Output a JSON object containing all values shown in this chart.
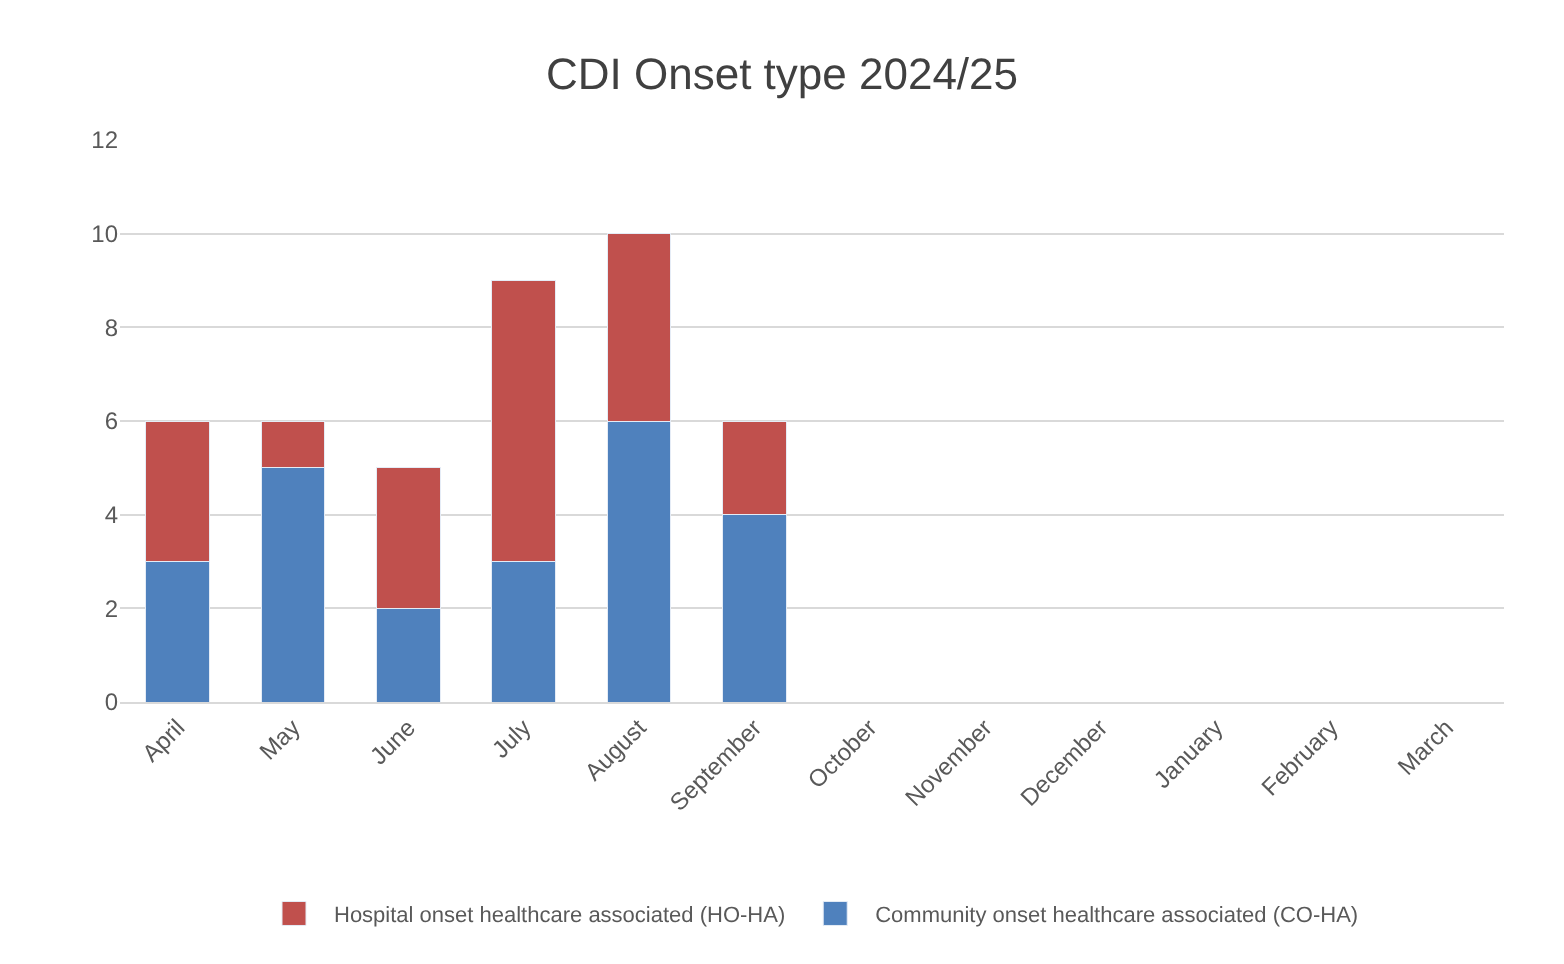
{
  "chart_data": {
    "type": "bar",
    "title": "CDI Onset type 2024/25",
    "stacked": true,
    "categories": [
      "April",
      "May",
      "June",
      "July",
      "August",
      "September",
      "October",
      "November",
      "December",
      "January",
      "February",
      "March"
    ],
    "series": [
      {
        "name": "Community onset healthcare associated (CO-HA)",
        "color": "#4f81bd",
        "values": [
          3,
          5,
          2,
          3,
          6,
          4,
          null,
          null,
          null,
          null,
          null,
          null
        ]
      },
      {
        "name": "Hospital onset healthcare associated (HO-HA)",
        "color": "#c0504d",
        "values": [
          3,
          1,
          3,
          6,
          4,
          2,
          null,
          null,
          null,
          null,
          null,
          null
        ]
      }
    ],
    "ylim": [
      0,
      12
    ],
    "yticks": [
      0,
      2,
      4,
      6,
      8,
      10,
      12
    ],
    "grid": "y",
    "legend": "bottom"
  }
}
